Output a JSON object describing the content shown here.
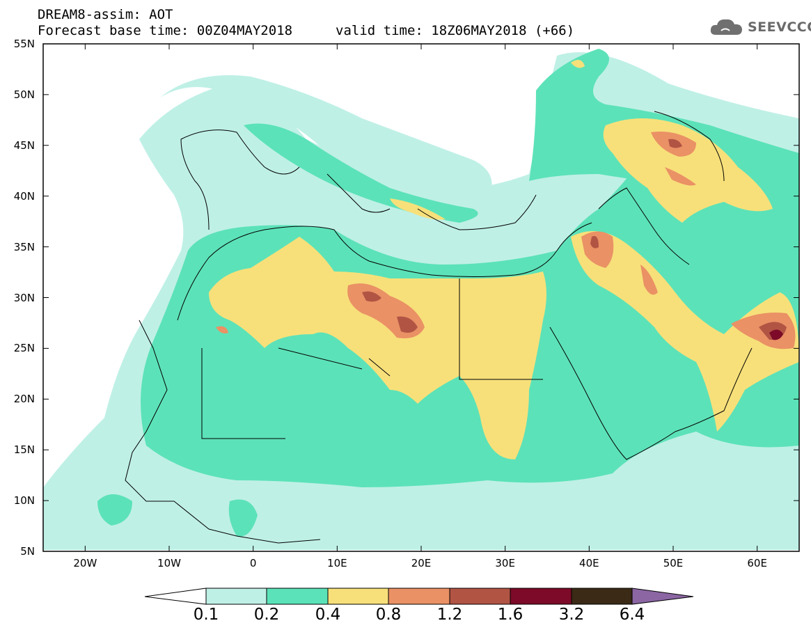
{
  "header": {
    "title_line1": "DREAM8-assim: AOT",
    "title_line2": "Forecast base time: 00Z04MAY2018",
    "valid_time": "valid time: 18Z06MAY2018 (+66)",
    "logo_text": "SEEVCCC"
  },
  "map": {
    "lat_labels": [
      "55N",
      "50N",
      "45N",
      "40N",
      "35N",
      "30N",
      "25N",
      "20N",
      "15N",
      "10N",
      "5N"
    ],
    "lon_labels": [
      "20W",
      "10W",
      "0",
      "10E",
      "20E",
      "30E",
      "40E",
      "50E",
      "60E"
    ],
    "extent": {
      "lon_min": -25,
      "lon_max": 65,
      "lat_min": 5,
      "lat_max": 55
    }
  },
  "colorbar": {
    "labels": [
      "0.1",
      "0.2",
      "0.4",
      "0.8",
      "1.2",
      "1.6",
      "3.2",
      "6.4"
    ],
    "colors": [
      "#ffffff",
      "#bff0e6",
      "#5ce2b8",
      "#f7e07a",
      "#ea9165",
      "#b25444",
      "#7c0a28",
      "#3a2a16",
      "#8b66a3"
    ]
  }
}
